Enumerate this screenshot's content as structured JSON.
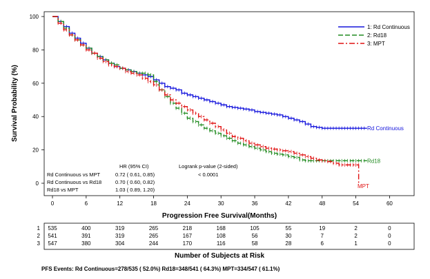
{
  "chart_data": {
    "type": "line",
    "xlabel": "Progression Free Survival(Months)",
    "ylabel": "Survival Probability (%)",
    "xlim": [
      0,
      60
    ],
    "ylim": [
      0,
      100
    ],
    "xticks": [
      0,
      6,
      12,
      18,
      24,
      30,
      36,
      42,
      48,
      54,
      60
    ],
    "yticks": [
      0,
      20,
      40,
      60,
      80,
      100
    ],
    "legend_position": "top-right",
    "series": [
      {
        "name": "1: Rd Continuous",
        "end_label": "Rd Continuous",
        "color": "#1414dc",
        "dash": "solid",
        "x": [
          0,
          1,
          2,
          3,
          4,
          5,
          6,
          7,
          8,
          9,
          10,
          11,
          12,
          13,
          14,
          15,
          16,
          17,
          18,
          19,
          20,
          21,
          22,
          23,
          24,
          25,
          26,
          27,
          28,
          29,
          30,
          31,
          32,
          33,
          34,
          35,
          36,
          37,
          38,
          39,
          40,
          41,
          42,
          43,
          44,
          45,
          46,
          47,
          48,
          49,
          50,
          51,
          52,
          53,
          54,
          55,
          56
        ],
        "y": [
          100,
          97,
          94,
          90,
          87,
          84,
          81,
          78,
          76,
          74,
          72,
          70,
          69,
          68,
          67,
          66,
          65,
          64,
          62,
          60,
          58,
          57,
          56,
          54,
          53,
          52,
          51,
          50,
          49,
          48,
          47,
          46,
          45.5,
          45,
          44.5,
          44,
          43,
          42.5,
          42,
          41.5,
          41,
          40,
          39,
          38,
          37,
          35.5,
          34,
          33.5,
          33,
          33,
          33,
          33,
          33,
          33,
          33,
          33,
          33
        ]
      },
      {
        "name": "2: Rd18",
        "end_label": "Rd18",
        "color": "#1f8a1f",
        "dash": "long-dash",
        "x": [
          0,
          1,
          2,
          3,
          4,
          5,
          6,
          7,
          8,
          9,
          10,
          11,
          12,
          13,
          14,
          15,
          16,
          17,
          18,
          19,
          20,
          21,
          22,
          23,
          24,
          25,
          26,
          27,
          28,
          29,
          30,
          31,
          32,
          33,
          34,
          35,
          36,
          37,
          38,
          39,
          40,
          41,
          42,
          43,
          44,
          45,
          46,
          47,
          48,
          49,
          50,
          51,
          52,
          53,
          54,
          55,
          56
        ],
        "y": [
          100,
          97,
          93,
          89,
          86,
          83,
          81,
          78,
          76,
          74,
          72,
          71,
          69,
          68,
          67,
          66,
          66,
          65,
          61,
          56,
          52,
          48,
          45,
          42,
          39,
          37,
          35,
          33,
          31.5,
          30,
          28.5,
          27,
          25.5,
          24,
          23,
          22,
          21,
          20,
          19,
          18,
          17.5,
          17,
          16,
          15.5,
          14,
          13.5,
          13.5,
          13.5,
          13.5,
          13.5,
          13.5,
          13.5,
          13.5,
          13.5,
          13.5,
          13.5,
          13.5
        ]
      },
      {
        "name": "3: MPT",
        "end_label": "MPT",
        "color": "#e01010",
        "dash": "dash-dot",
        "x": [
          0,
          1,
          2,
          3,
          4,
          5,
          6,
          7,
          8,
          9,
          10,
          11,
          12,
          13,
          14,
          15,
          16,
          17,
          18,
          19,
          20,
          21,
          22,
          23,
          24,
          25,
          26,
          27,
          28,
          29,
          30,
          31,
          32,
          33,
          34,
          35,
          36,
          37,
          38,
          39,
          40,
          41,
          42,
          43,
          44,
          45,
          46,
          47,
          48,
          49,
          50,
          51,
          52,
          53,
          54,
          54.5
        ],
        "y": [
          100,
          96,
          92,
          89,
          86,
          83,
          80,
          78,
          75,
          73,
          71,
          70,
          69,
          67,
          66,
          65,
          63,
          61,
          59,
          56,
          53,
          50,
          48,
          46,
          44,
          42,
          40,
          38,
          36,
          34,
          32,
          30,
          28,
          27,
          25.5,
          24,
          23,
          22,
          21,
          20.5,
          20,
          19.5,
          19,
          18,
          17,
          16,
          15,
          14,
          13.5,
          13,
          12,
          11,
          11,
          11,
          11,
          0
        ]
      }
    ],
    "annotations": {
      "hr_header": "HR (95% CI)",
      "hr_rows": [
        {
          "label": "Rd Continuous vs MPT",
          "value": "0.72 ( 0.61,  0.85)"
        },
        {
          "label": "Rd Continuous vs Rd18",
          "value": "0.70 ( 0.60,  0.82)"
        },
        {
          "label": "Rd18 vs MPT",
          "value": "1.03 ( 0.89,  1.20)"
        }
      ],
      "logrank_label": "Logrank p-value (2-sided)",
      "logrank_value": "< 0.0001"
    }
  },
  "risk_table": {
    "title": "Number of Subjects at Risk",
    "rows": [
      {
        "id": "1",
        "values": [
          "535",
          "400",
          "319",
          "265",
          "218",
          "168",
          "105",
          "55",
          "19",
          "2",
          "0"
        ]
      },
      {
        "id": "2",
        "values": [
          "541",
          "391",
          "319",
          "265",
          "167",
          "108",
          "56",
          "30",
          "7",
          "2",
          "0"
        ]
      },
      {
        "id": "3",
        "values": [
          "547",
          "380",
          "304",
          "244",
          "170",
          "116",
          "58",
          "28",
          "6",
          "1",
          "0"
        ]
      }
    ]
  },
  "footer": {
    "text": "PFS Events: Rd Continuous=278/535 ( 52.0%) Rd18=348/541 ( 64.3%) MPT=334/547 ( 61.1%)"
  }
}
